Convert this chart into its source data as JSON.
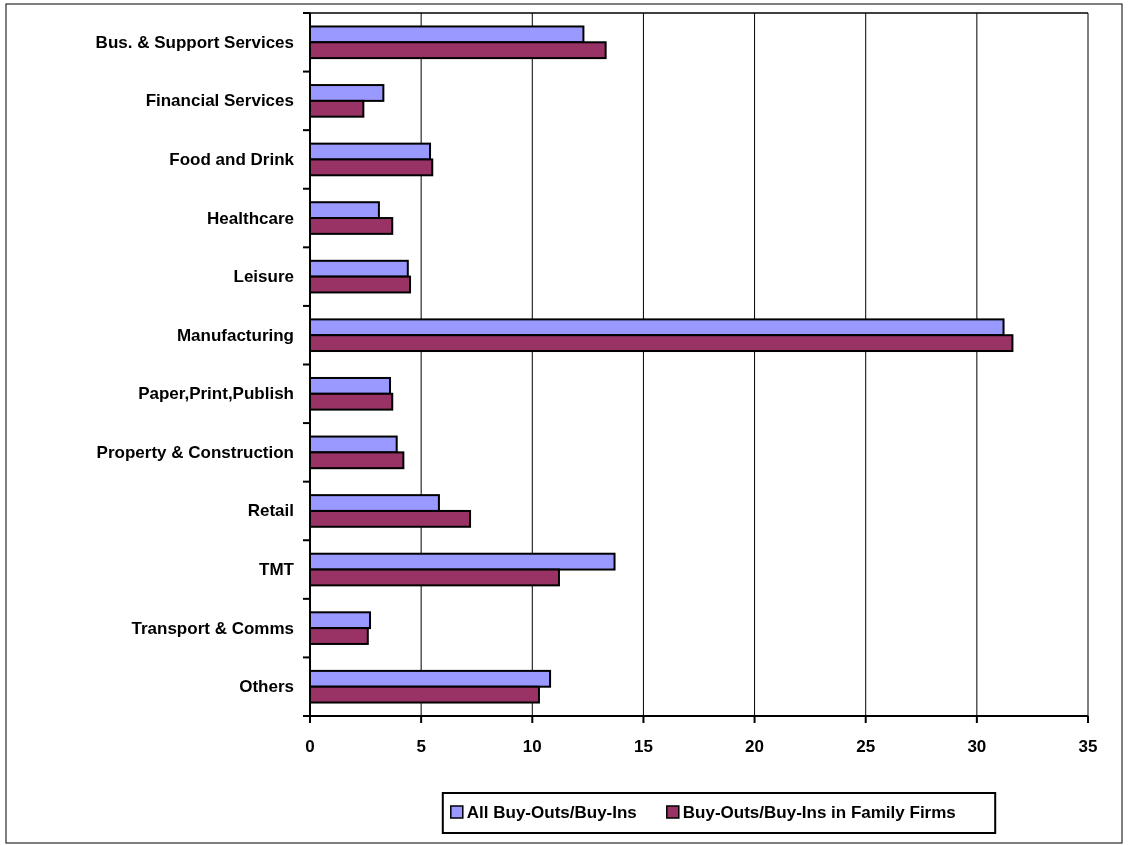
{
  "chart_data": {
    "type": "bar",
    "orientation": "horizontal",
    "categories": [
      "Bus. & Support Services",
      "Financial Services",
      "Food and Drink",
      "Healthcare",
      "Leisure",
      "Manufacturing",
      "Paper,Print,Publish",
      "Property & Construction",
      "Retail",
      "TMT",
      "Transport & Comms",
      "Others"
    ],
    "series": [
      {
        "name": "All Buy-Outs/Buy-Ins",
        "color": "#9999ff",
        "values": [
          12.3,
          3.3,
          5.4,
          3.1,
          4.4,
          31.2,
          3.6,
          3.9,
          5.8,
          13.7,
          2.7,
          10.8
        ]
      },
      {
        "name": "Buy-Outs/Buy-Ins in Family Firms",
        "color": "#993366",
        "values": [
          13.3,
          2.4,
          5.5,
          3.7,
          4.5,
          31.6,
          3.7,
          4.2,
          7.2,
          11.2,
          2.6,
          10.3
        ]
      }
    ],
    "xlim": [
      0,
      35
    ],
    "xticks": [
      0,
      5,
      10,
      15,
      20,
      25,
      30,
      35
    ],
    "grid": "x",
    "legend": "bottom"
  }
}
